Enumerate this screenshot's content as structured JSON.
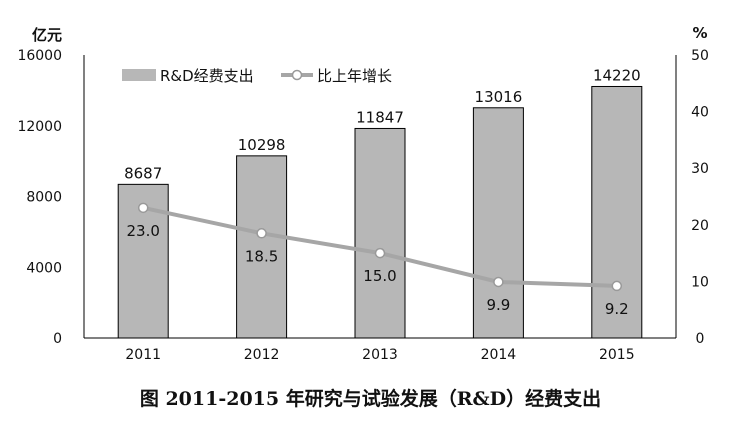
{
  "caption": "图 2011-2015 年研究与试验发展（R&D）经费支出",
  "chart_data": {
    "type": "bar",
    "categories": [
      "2011",
      "2012",
      "2013",
      "2014",
      "2015"
    ],
    "series": [
      {
        "name": "R&D经费支出",
        "type": "bar",
        "axis": "left",
        "values": [
          8687,
          10298,
          11847,
          13016,
          14220
        ],
        "color": "#b7b7b7"
      },
      {
        "name": "比上年增长",
        "type": "line",
        "axis": "right",
        "values": [
          23.0,
          18.5,
          15.0,
          9.9,
          9.2
        ],
        "labels": [
          "23.0",
          "18.5",
          "15.0",
          "9.9",
          "9.2"
        ],
        "color": "#a6a6a6"
      }
    ],
    "ylabel_left": "亿元",
    "ylabel_right": "%",
    "ylim_left": [
      0,
      16000
    ],
    "ylim_right": [
      0,
      50
    ],
    "yticks_left": [
      0,
      4000,
      8000,
      12000,
      16000
    ],
    "yticks_right": [
      0,
      10,
      20,
      30,
      40,
      50
    ],
    "legend_position": "top-left",
    "grid": false
  }
}
